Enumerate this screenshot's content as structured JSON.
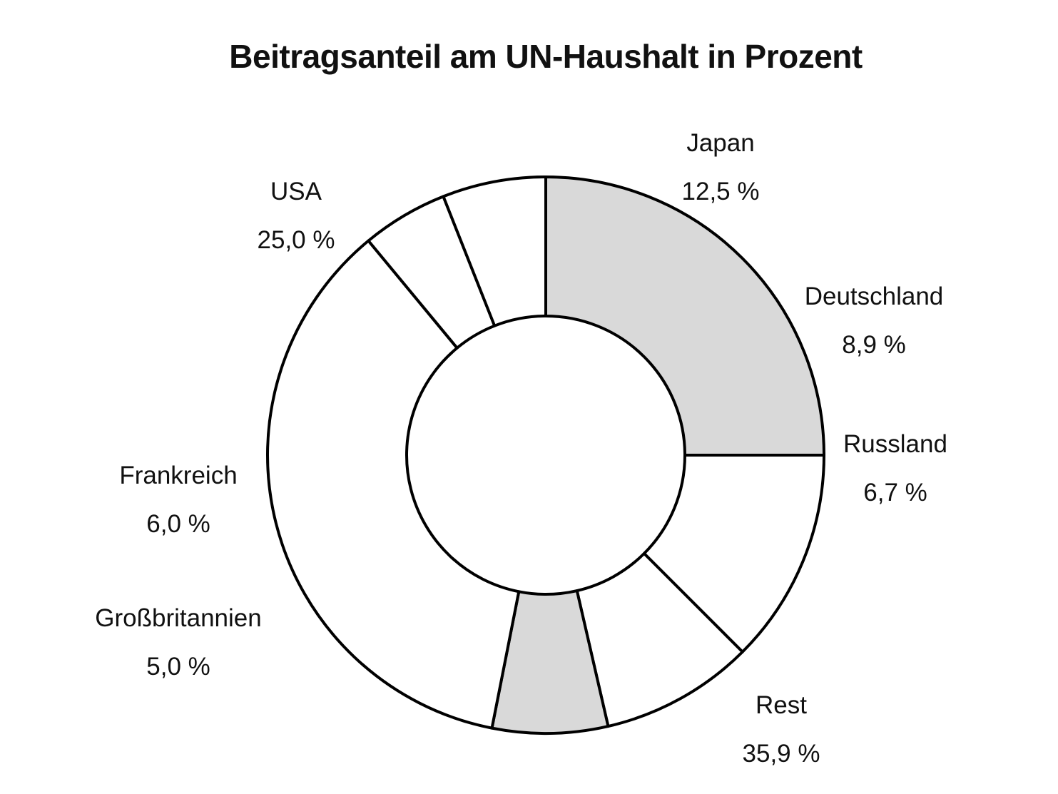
{
  "chart_data": {
    "type": "pie",
    "variant": "donut",
    "title": "Beitragsanteil am UN-Haushalt in Prozent",
    "unit": "%",
    "slices": [
      {
        "name": "USA",
        "value": 25.0,
        "value_label": "25,0 %",
        "fill": "#d9d9d9"
      },
      {
        "name": "Japan",
        "value": 12.5,
        "value_label": "12,5 %",
        "fill": "#ffffff"
      },
      {
        "name": "Deutschland",
        "value": 8.9,
        "value_label": "8,9 %",
        "fill": "#ffffff"
      },
      {
        "name": "Russland",
        "value": 6.7,
        "value_label": "6,7 %",
        "fill": "#d9d9d9"
      },
      {
        "name": "Rest",
        "value": 35.9,
        "value_label": "35,9 %",
        "fill": "#ffffff"
      },
      {
        "name": "Großbritannien",
        "value": 5.0,
        "value_label": "5,0 %",
        "fill": "#ffffff"
      },
      {
        "name": "Frankreich",
        "value": 6.0,
        "value_label": "6,0 %",
        "fill": "#ffffff"
      }
    ],
    "start_angle_deg": 0,
    "direction": "clockwise",
    "legend": "none",
    "grid": false
  }
}
